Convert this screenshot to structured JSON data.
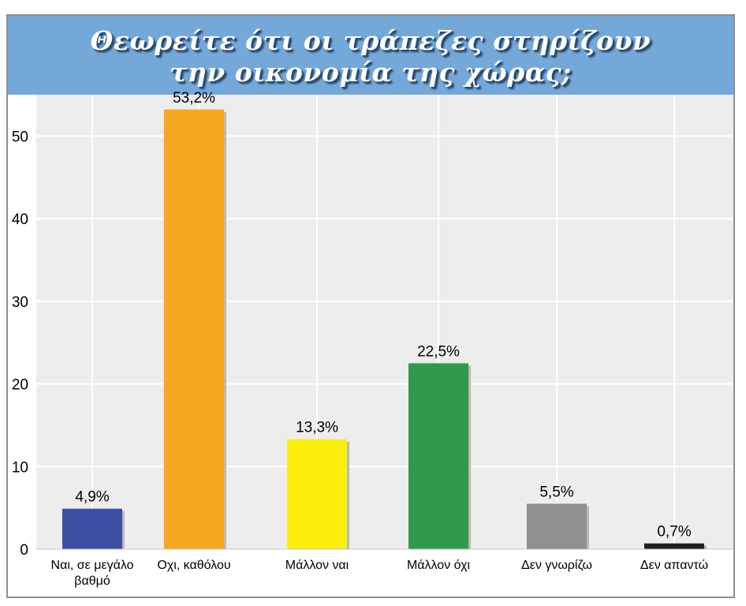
{
  "chart_data": {
    "type": "bar",
    "title_lines": [
      "Θεωρείτε ότι οι τράπεζες στηρίζουν",
      "την οικονομία της χώρας;"
    ],
    "xlabel": "",
    "ylabel": "",
    "ylim": [
      0,
      55
    ],
    "yticks": [
      0,
      10,
      20,
      30,
      40,
      50
    ],
    "grid": true,
    "categories": [
      [
        "Ναι, σε μεγάλο",
        "βαθμό"
      ],
      [
        "Οχι, καθόλου"
      ],
      [
        "Μάλλον ναι"
      ],
      [
        "Μάλλον όχι"
      ],
      [
        "Δεν γνωρίζω"
      ],
      [
        "Δεν απαντώ"
      ]
    ],
    "values": [
      4.9,
      53.2,
      13.3,
      22.5,
      5.5,
      0.7
    ],
    "value_labels": [
      "4,9%",
      "53,2%",
      "13,3%",
      "22,5%",
      "5,5%",
      "0,7%"
    ],
    "colors": [
      "#3d4fa3",
      "#f6a821",
      "#fbee0a",
      "#2f9a4a",
      "#8e9092",
      "#231f20"
    ]
  },
  "colors": {
    "title_bar": "#74a8d9",
    "chart_background": "#ededed",
    "gridline": "#ffffff"
  }
}
